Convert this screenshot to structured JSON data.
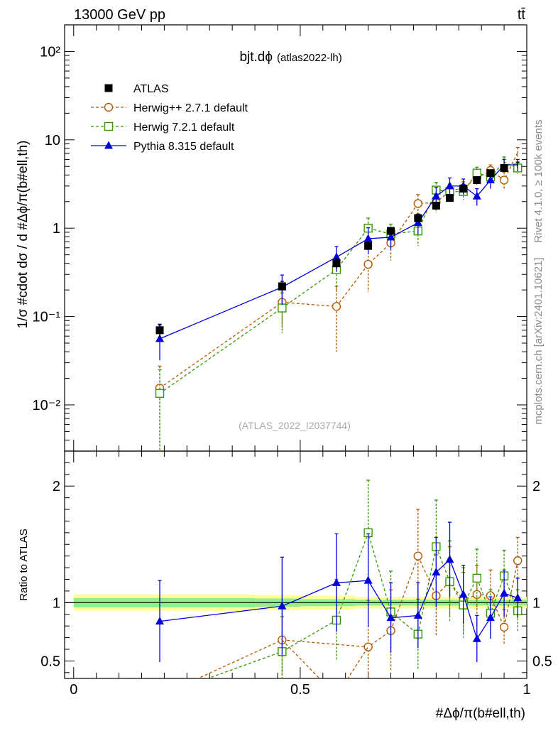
{
  "header": {
    "left_title": "13000 GeV pp",
    "right_title": "tt̄",
    "side_label_top": "Rivet 4.1.0, ≥ 100k events",
    "side_label_bottom": "mcplots.cern.ch [arXiv:2401.10621]"
  },
  "chart_data": [
    {
      "type": "scatter",
      "panel": "main",
      "title": "bjt.dϕ",
      "title_suffix": "(atlas2022-lh)",
      "analysis_label": "(ATLAS_2022_I2037744)",
      "ylabel": "1/σ #cdot dσ / d #Δϕ/π(b#ell,th)",
      "yscale": "log",
      "ylim": [
        0.003,
        200
      ],
      "xlim": [
        -0.02,
        1.0
      ],
      "yticks": [
        {
          "value": 0.01,
          "label": "10⁻²"
        },
        {
          "value": 0.1,
          "label": "10⁻¹"
        },
        {
          "value": 1,
          "label": "1"
        },
        {
          "value": 10,
          "label": "10"
        },
        {
          "value": 100,
          "label": "10²"
        }
      ],
      "legend_position": "top-left",
      "series": [
        {
          "name": "ATLAS",
          "style": "data",
          "color": "#000000",
          "x": [
            0.19,
            0.46,
            0.58,
            0.65,
            0.7,
            0.76,
            0.8,
            0.83,
            0.86,
            0.89,
            0.92,
            0.95,
            0.98
          ],
          "y": [
            0.07,
            0.22,
            0.4,
            0.63,
            0.93,
            1.3,
            1.8,
            2.2,
            2.8,
            3.5,
            4.2,
            4.8,
            5.2
          ],
          "err": [
            0.012,
            0.03,
            0.05,
            0.06,
            0.09,
            0.12,
            0.15,
            0.18,
            0.22,
            0.28,
            0.32,
            0.38,
            0.4
          ]
        },
        {
          "name": "Herwig++ 2.7.1 default",
          "style": "circle",
          "color": "#b35900",
          "x": [
            0.19,
            0.46,
            0.58,
            0.65,
            0.7,
            0.76,
            0.8,
            0.83,
            0.86,
            0.89,
            0.92,
            0.95,
            0.98
          ],
          "y": [
            0.0155,
            0.145,
            0.13,
            0.39,
            0.68,
            1.9,
            1.95,
            2.65,
            2.85,
            3.7,
            4.5,
            3.5,
            7.2
          ],
          "err": [
            0.012,
            0.07,
            0.09,
            0.2,
            0.25,
            0.5,
            0.45,
            0.5,
            0.5,
            0.6,
            0.7,
            0.8,
            1.0
          ]
        },
        {
          "name": "Herwig 7.2.1 default",
          "style": "square",
          "color": "#339900",
          "x": [
            0.19,
            0.46,
            0.58,
            0.65,
            0.7,
            0.76,
            0.8,
            0.83,
            0.86,
            0.89,
            0.92,
            0.95,
            0.98
          ],
          "y": [
            0.0135,
            0.125,
            0.34,
            1.0,
            0.86,
            0.93,
            2.7,
            2.6,
            2.6,
            4.2,
            3.8,
            5.6,
            4.8
          ],
          "err": [
            0.0115,
            0.06,
            0.14,
            0.3,
            0.25,
            0.3,
            0.6,
            0.55,
            0.5,
            0.7,
            0.6,
            0.8,
            0.7
          ]
        },
        {
          "name": "Pythia 8.315 default",
          "style": "triangle",
          "color": "#0000dd",
          "x": [
            0.19,
            0.46,
            0.58,
            0.65,
            0.7,
            0.76,
            0.8,
            0.83,
            0.86,
            0.89,
            0.92,
            0.95,
            0.98
          ],
          "y": [
            0.056,
            0.215,
            0.47,
            0.76,
            0.79,
            1.15,
            2.3,
            3.0,
            3.0,
            2.3,
            3.5,
            5.2,
            5.2
          ],
          "err": [
            0.024,
            0.08,
            0.15,
            0.25,
            0.22,
            0.3,
            0.6,
            0.7,
            0.6,
            0.5,
            0.7,
            0.8,
            0.8
          ]
        }
      ]
    },
    {
      "type": "scatter",
      "panel": "ratio",
      "ylabel": "Ratio to ATLAS",
      "xlabel": "#Δϕ/π(b#ell,th)",
      "ylim": [
        0.35,
        2.3
      ],
      "xlim": [
        -0.02,
        1.0
      ],
      "xticks": [
        {
          "value": 0,
          "label": "0"
        },
        {
          "value": 0.5,
          "label": "0.5"
        },
        {
          "value": 1,
          "label": "1"
        }
      ],
      "yticks": [
        {
          "value": 0.5,
          "label": "0.5"
        },
        {
          "value": 1,
          "label": "1"
        },
        {
          "value": 2,
          "label": "2"
        }
      ],
      "band_inner": [
        {
          "x0": 0.0,
          "x1": 0.4,
          "lo": 0.96,
          "hi": 1.04
        },
        {
          "x0": 0.4,
          "x1": 0.5,
          "lo": 0.965,
          "hi": 1.035
        },
        {
          "x0": 0.5,
          "x1": 0.62,
          "lo": 0.97,
          "hi": 1.03
        },
        {
          "x0": 0.62,
          "x1": 1.0,
          "lo": 0.975,
          "hi": 1.025
        }
      ],
      "band_outer": [
        {
          "x0": 0.0,
          "x1": 0.4,
          "lo": 0.93,
          "hi": 1.07
        },
        {
          "x0": 0.4,
          "x1": 0.5,
          "lo": 0.935,
          "hi": 1.065
        },
        {
          "x0": 0.5,
          "x1": 0.62,
          "lo": 0.94,
          "hi": 1.06
        },
        {
          "x0": 0.62,
          "x1": 1.0,
          "lo": 0.95,
          "hi": 1.05
        }
      ],
      "series": [
        {
          "name": "Herwig++ 2.7.1 default",
          "style": "circle",
          "color": "#b35900",
          "x": [
            0.46,
            0.65,
            0.7,
            0.76,
            0.8,
            0.83,
            0.86,
            0.89,
            0.92,
            0.95,
            0.98
          ],
          "y": [
            0.68,
            0.62,
            0.76,
            1.4,
            1.06,
            1.18,
            1.02,
            1.07,
            1.06,
            0.79,
            1.36
          ],
          "err": [
            0.3,
            0.4,
            0.35,
            0.4,
            0.35,
            0.3,
            0.28,
            0.25,
            0.22,
            0.15,
            0.2
          ]
        },
        {
          "name": "Herwig 7.2.1 default",
          "style": "square",
          "color": "#339900",
          "x": [
            0.46,
            0.58,
            0.65,
            0.7,
            0.76,
            0.8,
            0.83,
            0.86,
            0.89,
            0.92,
            0.95,
            0.98
          ],
          "y": [
            0.58,
            0.85,
            1.6,
            0.92,
            0.73,
            1.48,
            1.18,
            0.98,
            1.21,
            0.91,
            1.23,
            0.93
          ],
          "err": [
            0.3,
            0.35,
            0.45,
            0.35,
            0.3,
            0.4,
            0.35,
            0.28,
            0.25,
            0.2,
            0.22,
            0.18
          ]
        },
        {
          "name": "Pythia 8.315 default",
          "style": "triangle",
          "color": "#0000dd",
          "x": [
            0.19,
            0.46,
            0.58,
            0.65,
            0.7,
            0.76,
            0.8,
            0.83,
            0.86,
            0.89,
            0.92,
            0.95,
            0.98
          ],
          "y": [
            0.84,
            0.97,
            1.17,
            1.19,
            0.87,
            0.89,
            1.26,
            1.37,
            1.07,
            0.69,
            0.87,
            1.08,
            1.04
          ],
          "err": [
            0.35,
            0.42,
            0.42,
            0.4,
            0.3,
            0.28,
            0.3,
            0.32,
            0.25,
            0.2,
            0.18,
            0.2,
            0.17
          ]
        }
      ]
    }
  ]
}
